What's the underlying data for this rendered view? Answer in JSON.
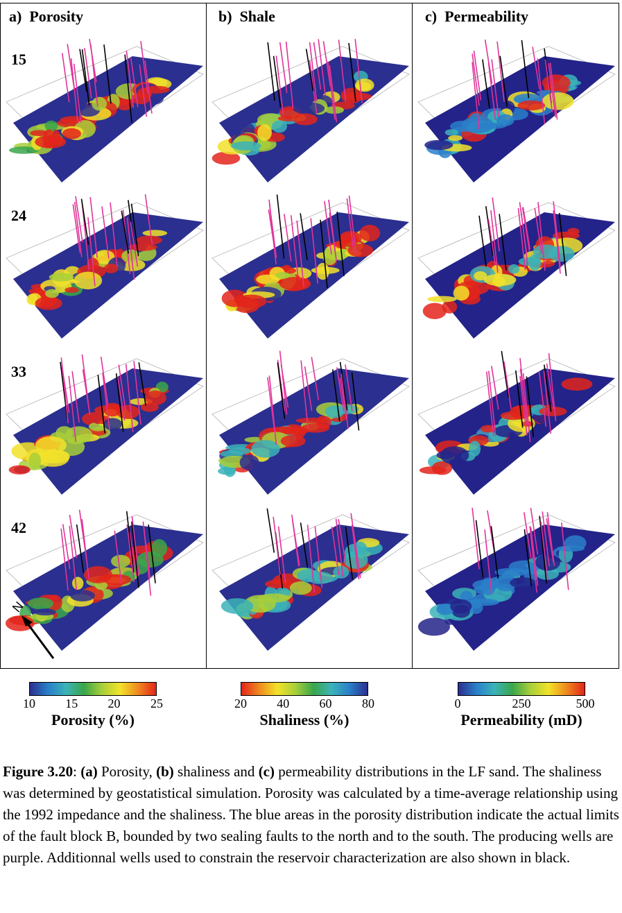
{
  "panels": [
    {
      "letter": "a)",
      "title": "Porosity"
    },
    {
      "letter": "b)",
      "title": "Shale"
    },
    {
      "letter": "c)",
      "title": "Permeability"
    }
  ],
  "layers": [
    "15",
    "24",
    "33",
    "42"
  ],
  "north_label": "N",
  "colorbars": [
    {
      "ticks": [
        "10",
        "15",
        "20",
        "25"
      ],
      "title": "Porosity (%)",
      "colors": [
        "#2b2f8f",
        "#2a7fc9",
        "#3bb3b9",
        "#3aa64a",
        "#a8cf3a",
        "#f2e22a",
        "#f08a1e",
        "#e3241b"
      ]
    },
    {
      "ticks": [
        "20",
        "40",
        "60",
        "80"
      ],
      "title": "Shaliness (%)",
      "colors": [
        "#e3241b",
        "#f08a1e",
        "#f2e22a",
        "#a8cf3a",
        "#3aa64a",
        "#3bb3b9",
        "#2a7fc9",
        "#2b2f8f"
      ]
    },
    {
      "ticks": [
        "0",
        "250",
        "500"
      ],
      "title": "Permeability (mD)",
      "colors": [
        "#2b2f8f",
        "#2a7fc9",
        "#3bb3b9",
        "#3aa64a",
        "#a8cf3a",
        "#f2e22a",
        "#f08a1e",
        "#e3241b"
      ]
    }
  ],
  "colors": {
    "purple_wells": "#e0339a",
    "black_wells": "#000000",
    "low": "#23238a"
  },
  "caption": {
    "figure_label": "Figure 3.20",
    "sep": ": ",
    "a_label": "(a)",
    "a_text": " Porosity, ",
    "b_label": "(b)",
    "b_text": " shaliness and ",
    "c_label": "(c)",
    "c_text": " permeability distributions in the LF sand. The shaliness was determined by geostatistical simulation. Porosity was calculated by a time-average relationship using the 1992 impedance and the shaliness. The blue areas in the porosity distribution indicate the actual limits of the fault block B, bounded by two sealing faults to the north and to the south. The producing wells are purple. Additionnal wells used to constrain the reservoir characterization are also shown in black."
  }
}
